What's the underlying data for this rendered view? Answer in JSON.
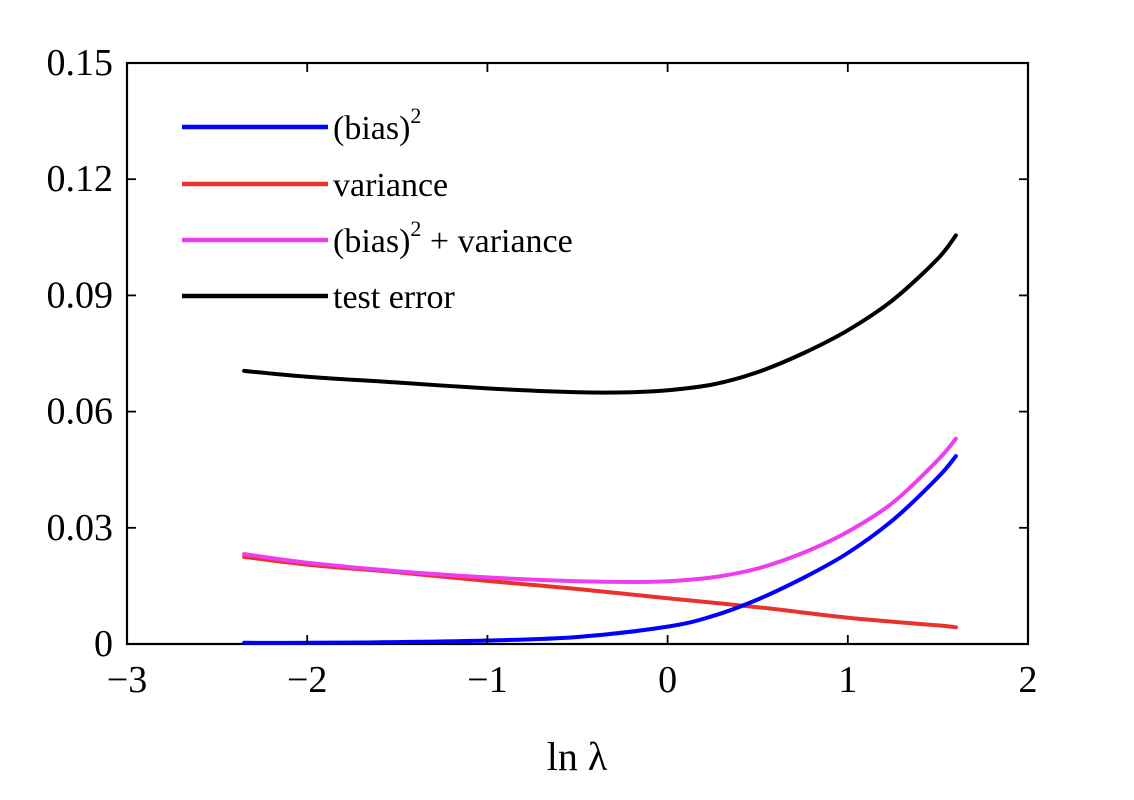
{
  "chart_data": {
    "type": "line",
    "xlabel": "ln λ",
    "ylabel": "",
    "xlim": [
      -3,
      2
    ],
    "ylim": [
      0,
      0.15
    ],
    "xticks": [
      -3,
      -2,
      -1,
      0,
      1,
      2
    ],
    "xtick_labels": [
      "−3",
      "−2",
      "−1",
      "0",
      "1",
      "2"
    ],
    "yticks": [
      0,
      0.03,
      0.06,
      0.09,
      0.12,
      0.15
    ],
    "ytick_labels": [
      "0",
      "0.03",
      "0.06",
      "0.09",
      "0.12",
      "0.15"
    ],
    "grid": false,
    "legend_position": "top-left",
    "series": [
      {
        "name": "(bias)^2",
        "color": "#0000ff",
        "x": [
          -2.35,
          -2.0,
          -1.5,
          -1.0,
          -0.5,
          0.0,
          0.25,
          0.5,
          0.75,
          1.0,
          1.25,
          1.5,
          1.6
        ],
        "y": [
          0.0003,
          0.0003,
          0.0005,
          0.0009,
          0.0018,
          0.0045,
          0.0072,
          0.0115,
          0.017,
          0.0235,
          0.032,
          0.043,
          0.0485
        ]
      },
      {
        "name": "variance",
        "color": "#e8322a",
        "x": [
          -2.35,
          -2.0,
          -1.5,
          -1.0,
          -0.5,
          0.0,
          0.5,
          1.0,
          1.5,
          1.6
        ],
        "y": [
          0.0225,
          0.0205,
          0.0185,
          0.0163,
          0.0142,
          0.0118,
          0.0095,
          0.0068,
          0.0048,
          0.0043
        ]
      },
      {
        "name": "(bias)^2 + variance",
        "color": "#f03cf0",
        "x": [
          -2.35,
          -2.0,
          -1.5,
          -1.0,
          -0.5,
          -0.2,
          0.0,
          0.25,
          0.5,
          0.75,
          1.0,
          1.25,
          1.5,
          1.6
        ],
        "y": [
          0.0232,
          0.021,
          0.0188,
          0.0172,
          0.0162,
          0.016,
          0.0162,
          0.0172,
          0.0195,
          0.0235,
          0.029,
          0.0365,
          0.0475,
          0.053
        ]
      },
      {
        "name": "test error",
        "color": "#000000",
        "x": [
          -2.35,
          -2.0,
          -1.5,
          -1.0,
          -0.5,
          -0.2,
          0.0,
          0.25,
          0.5,
          0.75,
          1.0,
          1.25,
          1.5,
          1.6
        ],
        "y": [
          0.0705,
          0.069,
          0.0675,
          0.066,
          0.065,
          0.065,
          0.0655,
          0.067,
          0.0702,
          0.075,
          0.081,
          0.0888,
          0.0995,
          0.1055
        ]
      }
    ],
    "legend": [
      {
        "text": "(bias)",
        "sup": "2",
        "rest": ""
      },
      {
        "text": "variance",
        "sup": "",
        "rest": ""
      },
      {
        "text": "(bias)",
        "sup": "2",
        "rest": " + variance"
      },
      {
        "text": "test error",
        "sup": "",
        "rest": ""
      }
    ]
  }
}
